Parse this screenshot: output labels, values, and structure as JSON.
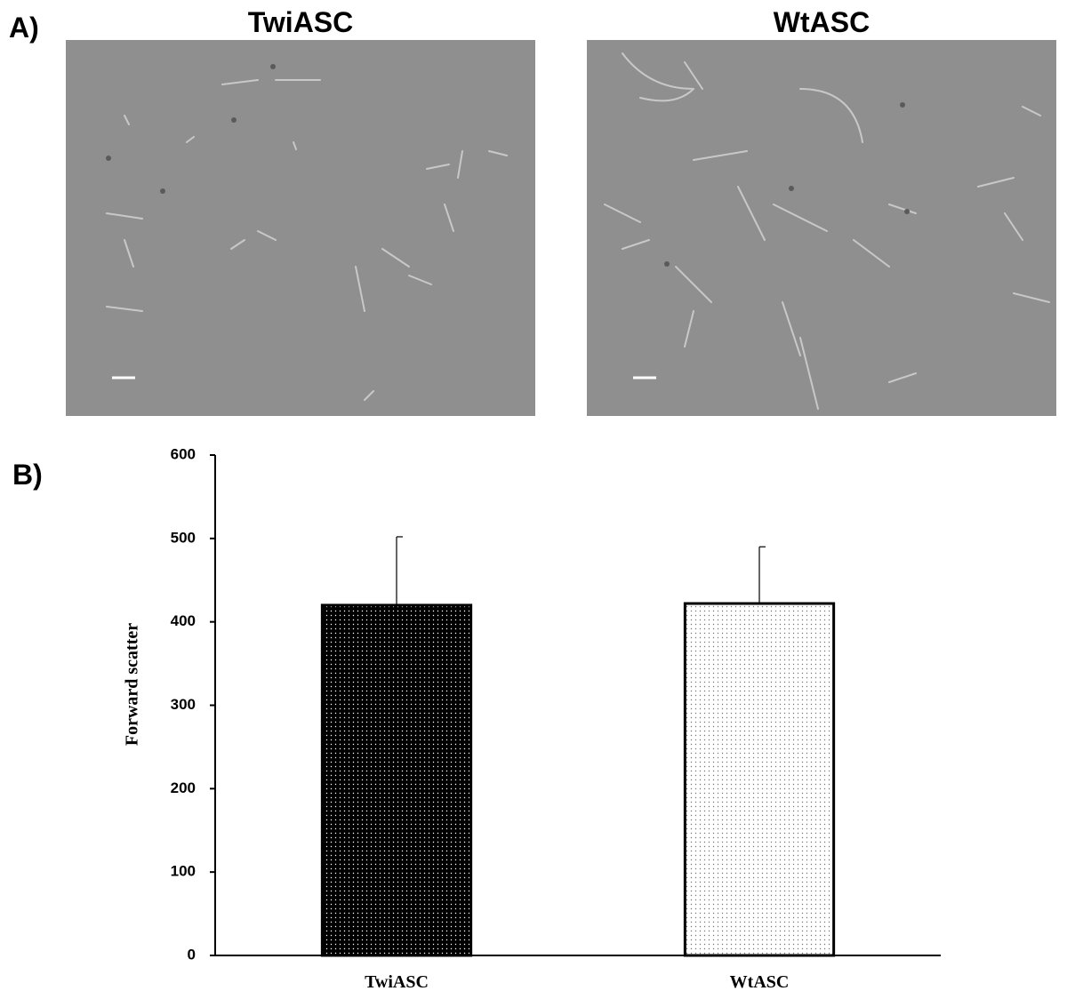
{
  "panel_a": {
    "label": "A)",
    "images": [
      {
        "title": "TwiASC"
      },
      {
        "title": "WtASC"
      }
    ]
  },
  "panel_b": {
    "label": "B)"
  },
  "chart_data": {
    "type": "bar",
    "ylabel": "Forward scatter",
    "categories": [
      "TwiASC",
      "WtASC"
    ],
    "values": [
      420,
      422
    ],
    "errors": [
      82,
      68
    ],
    "colors": [
      "#000000",
      "#ffffff"
    ],
    "ylim": [
      0,
      600
    ],
    "yticks": [
      0,
      100,
      200,
      300,
      400,
      500,
      600
    ],
    "grid": false
  }
}
